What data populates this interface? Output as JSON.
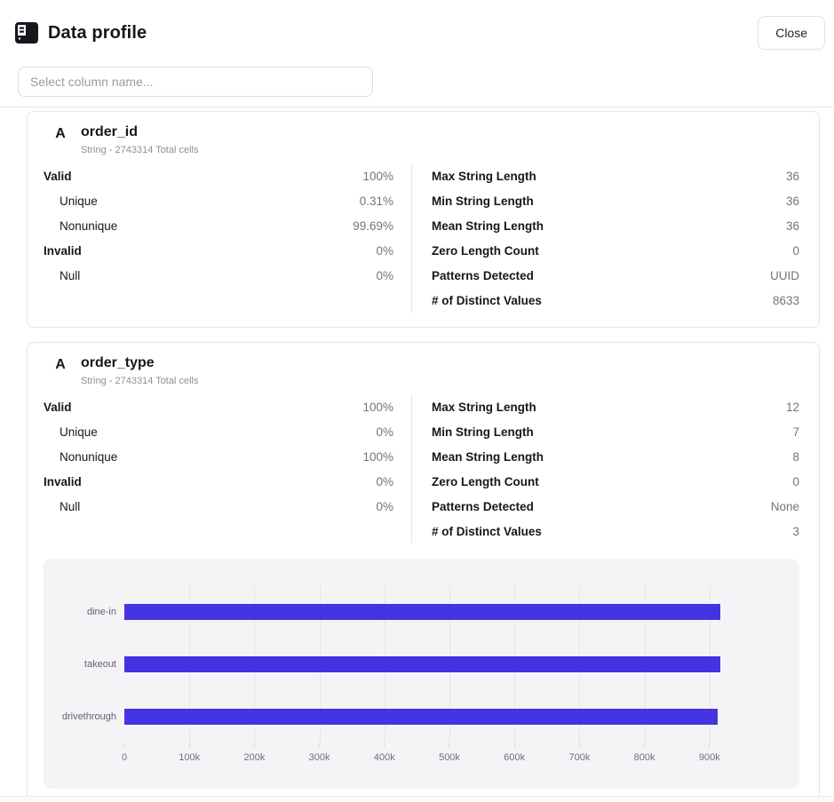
{
  "header": {
    "title": "Data profile",
    "close_label": "Close"
  },
  "search": {
    "placeholder": "Select column name..."
  },
  "cards": [
    {
      "type_icon": "A",
      "name": "order_id",
      "subtitle": "String - 2743314 Total cells",
      "left_stats": [
        {
          "label": "Valid",
          "value": "100%",
          "indent": false
        },
        {
          "label": "Unique",
          "value": "0.31%",
          "indent": true
        },
        {
          "label": "Nonunique",
          "value": "99.69%",
          "indent": true
        },
        {
          "label": "Invalid",
          "value": "0%",
          "indent": false
        },
        {
          "label": "Null",
          "value": "0%",
          "indent": true
        }
      ],
      "right_stats": [
        {
          "label": "Max String Length",
          "value": "36"
        },
        {
          "label": "Min String Length",
          "value": "36"
        },
        {
          "label": "Mean String Length",
          "value": "36"
        },
        {
          "label": "Zero Length Count",
          "value": "0"
        },
        {
          "label": "Patterns Detected",
          "value": "UUID"
        },
        {
          "label": "# of Distinct Values",
          "value": "8633"
        }
      ]
    },
    {
      "type_icon": "A",
      "name": "order_type",
      "subtitle": "String - 2743314 Total cells",
      "left_stats": [
        {
          "label": "Valid",
          "value": "100%",
          "indent": false
        },
        {
          "label": "Unique",
          "value": "0%",
          "indent": true
        },
        {
          "label": "Nonunique",
          "value": "100%",
          "indent": true
        },
        {
          "label": "Invalid",
          "value": "0%",
          "indent": false
        },
        {
          "label": "Null",
          "value": "0%",
          "indent": true
        }
      ],
      "right_stats": [
        {
          "label": "Max String Length",
          "value": "12"
        },
        {
          "label": "Min String Length",
          "value": "7"
        },
        {
          "label": "Mean String Length",
          "value": "8"
        },
        {
          "label": "Zero Length Count",
          "value": "0"
        },
        {
          "label": "Patterns Detected",
          "value": "None"
        },
        {
          "label": "# of Distinct Values",
          "value": "3"
        }
      ]
    }
  ],
  "chart_data": {
    "type": "bar",
    "orientation": "horizontal",
    "title": "",
    "xlabel": "",
    "ylabel": "",
    "categories": [
      "dine-in",
      "takeout",
      "drivethrough"
    ],
    "values": [
      917000,
      916000,
      912000
    ],
    "xlim": [
      0,
      1000000
    ],
    "x_tick_values": [
      0,
      100000,
      200000,
      300000,
      400000,
      500000,
      600000,
      700000,
      800000,
      900000
    ],
    "x_tick_labels": [
      "0",
      "100k",
      "200k",
      "300k",
      "400k",
      "500k",
      "600k",
      "700k",
      "800k",
      "900k"
    ],
    "grid": true,
    "legend": false,
    "bar_color": "#4433E0",
    "panel_background": "#f4f4f6"
  },
  "icons": {
    "header_icon": "data-profile-icon",
    "string_type_icon": "A"
  },
  "colors": {
    "ink": "#16161f",
    "value_gray": "#73737f",
    "accent_bar": "#4433E0"
  }
}
